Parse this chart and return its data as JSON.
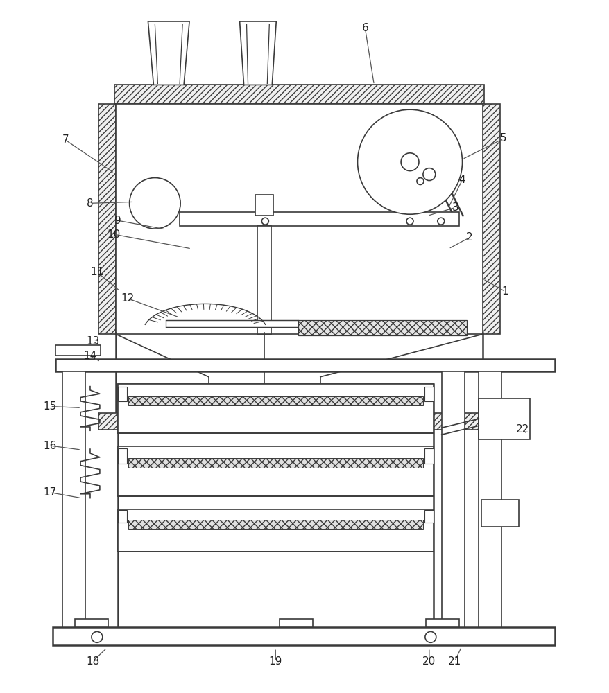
{
  "bg": "#ffffff",
  "lc": "#3a3a3a",
  "lw": 1.2,
  "lw2": 1.8,
  "label_fs": 11,
  "labels": [
    [
      "6",
      527,
      38,
      540,
      120
    ],
    [
      "7",
      92,
      200,
      163,
      248
    ],
    [
      "5",
      728,
      198,
      668,
      228
    ],
    [
      "4",
      668,
      258,
      648,
      298
    ],
    [
      "3",
      658,
      298,
      618,
      310
    ],
    [
      "2",
      678,
      342,
      648,
      358
    ],
    [
      "1",
      730,
      420,
      698,
      402
    ],
    [
      "8",
      128,
      292,
      192,
      290
    ],
    [
      "9",
      168,
      317,
      238,
      330
    ],
    [
      "10",
      162,
      337,
      275,
      358
    ],
    [
      "11",
      138,
      392,
      172,
      420
    ],
    [
      "12",
      182,
      430,
      258,
      458
    ],
    [
      "13",
      132,
      492,
      143,
      500
    ],
    [
      "14",
      128,
      514,
      143,
      522
    ],
    [
      "15",
      70,
      587,
      115,
      589
    ],
    [
      "16",
      70,
      644,
      115,
      650
    ],
    [
      "17",
      70,
      712,
      115,
      720
    ],
    [
      "18",
      132,
      957,
      152,
      938
    ],
    [
      "19",
      397,
      957,
      397,
      938
    ],
    [
      "20",
      620,
      957,
      620,
      938
    ],
    [
      "21",
      657,
      957,
      667,
      936
    ],
    [
      "22",
      755,
      620,
      762,
      627
    ]
  ]
}
